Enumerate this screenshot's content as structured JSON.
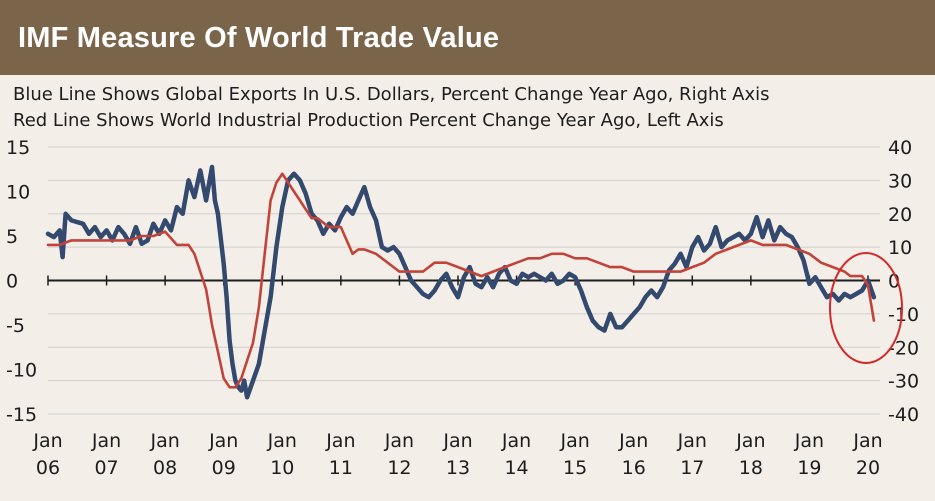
{
  "chart_data": {
    "type": "line",
    "title": "IMF Measure Of World Trade Value",
    "subtitle_lines": [
      "Blue Line Shows Global Exports In U.S. Dollars, Percent Change Year Ago, Right Axis",
      "Red Line Shows World Industrial Production Percent Change Year Ago, Left Axis"
    ],
    "x_tick_labels": [
      [
        "Jan",
        "06"
      ],
      [
        "Jan",
        "07"
      ],
      [
        "Jan",
        "08"
      ],
      [
        "Jan",
        "09"
      ],
      [
        "Jan",
        "10"
      ],
      [
        "Jan",
        "11"
      ],
      [
        "Jan",
        "12"
      ],
      [
        "Jan",
        "13"
      ],
      [
        "Jan",
        "14"
      ],
      [
        "Jan",
        "15"
      ],
      [
        "Jan",
        "16"
      ],
      [
        "Jan",
        "17"
      ],
      [
        "Jan",
        "18"
      ],
      [
        "Jan",
        "19"
      ],
      [
        "Jan",
        "20"
      ]
    ],
    "xlim": [
      2006.0,
      2020.2
    ],
    "left_axis": {
      "ylim": [
        -15,
        15
      ],
      "ticks": [
        15,
        10,
        5,
        0,
        -5,
        -10,
        -15
      ],
      "tick_labels": [
        "15",
        "10",
        "5",
        "0",
        "-5",
        "-10",
        "-15"
      ]
    },
    "right_axis": {
      "ylim": [
        -40,
        40
      ],
      "ticks": [
        40,
        30,
        20,
        10,
        0,
        -10,
        -20,
        -30,
        -40
      ],
      "tick_labels": [
        "40",
        "30",
        "20",
        "10",
        "0",
        "-10",
        "-20",
        "-30",
        "-40"
      ]
    },
    "grid": "horizontal",
    "series": [
      {
        "axis": "right",
        "color": "#34496e",
        "x": [
          2006.0,
          2006.1,
          2006.2,
          2006.25,
          2006.3,
          2006.4,
          2006.6,
          2006.7,
          2006.8,
          2006.9,
          2007.0,
          2007.1,
          2007.2,
          2007.3,
          2007.4,
          2007.5,
          2007.6,
          2007.7,
          2007.8,
          2007.9,
          2008.0,
          2008.1,
          2008.2,
          2008.3,
          2008.4,
          2008.5,
          2008.6,
          2008.7,
          2008.8,
          2008.85,
          2008.9,
          2009.0,
          2009.05,
          2009.1,
          2009.15,
          2009.2,
          2009.25,
          2009.3,
          2009.35,
          2009.4,
          2009.5,
          2009.6,
          2009.7,
          2009.8,
          2009.9,
          2010.0,
          2010.1,
          2010.2,
          2010.3,
          2010.4,
          2010.5,
          2010.6,
          2010.7,
          2010.8,
          2010.9,
          2011.0,
          2011.1,
          2011.2,
          2011.3,
          2011.4,
          2011.5,
          2011.6,
          2011.7,
          2011.8,
          2011.9,
          2012.0,
          2012.1,
          2012.2,
          2012.3,
          2012.4,
          2012.5,
          2012.6,
          2012.7,
          2012.8,
          2012.9,
          2013.0,
          2013.1,
          2013.2,
          2013.3,
          2013.4,
          2013.5,
          2013.6,
          2013.7,
          2013.8,
          2013.9,
          2014.0,
          2014.1,
          2014.2,
          2014.3,
          2014.4,
          2014.5,
          2014.6,
          2014.7,
          2014.8,
          2014.9,
          2015.0,
          2015.1,
          2015.2,
          2015.3,
          2015.4,
          2015.5,
          2015.6,
          2015.7,
          2015.8,
          2015.9,
          2016.0,
          2016.1,
          2016.2,
          2016.3,
          2016.4,
          2016.5,
          2016.6,
          2016.7,
          2016.8,
          2016.9,
          2017.0,
          2017.1,
          2017.2,
          2017.3,
          2017.4,
          2017.5,
          2017.6,
          2017.7,
          2017.8,
          2017.9,
          2018.0,
          2018.1,
          2018.2,
          2018.3,
          2018.4,
          2018.5,
          2018.6,
          2018.7,
          2018.8,
          2018.9,
          2019.0,
          2019.1,
          2019.2,
          2019.3,
          2019.4,
          2019.5,
          2019.6,
          2019.7,
          2019.8,
          2019.9,
          2020.0,
          2020.1
        ],
        "values": [
          14,
          13,
          15,
          7,
          20,
          18,
          17,
          14,
          16,
          13,
          15,
          12,
          16,
          14,
          11,
          16,
          11,
          12,
          17,
          14,
          18,
          15,
          22,
          20,
          30,
          25,
          33,
          24,
          34,
          24,
          20,
          5,
          -5,
          -18,
          -25,
          -30,
          -32,
          -33,
          -30,
          -35,
          -30,
          -25,
          -15,
          -5,
          10,
          22,
          30,
          32,
          30,
          26,
          20,
          18,
          14,
          17,
          15,
          19,
          22,
          20,
          24,
          28,
          22,
          18,
          10,
          9,
          10,
          8,
          4,
          0,
          -2,
          -4,
          -5,
          -3,
          0,
          2,
          -2,
          -5,
          1,
          4,
          -1,
          -2,
          1,
          -2,
          2,
          4,
          0,
          -1,
          2,
          1,
          2,
          1,
          0,
          2,
          -1,
          0,
          2,
          1,
          -3,
          -8,
          -12,
          -14,
          -15,
          -10,
          -14,
          -14,
          -12,
          -10,
          -8,
          -5,
          -3,
          -5,
          -2,
          3,
          5,
          8,
          4,
          10,
          13,
          9,
          11,
          16,
          10,
          12,
          13,
          14,
          12,
          14,
          19,
          13,
          18,
          12,
          16,
          14,
          13,
          10,
          6,
          -1,
          1,
          -2,
          -5,
          -4,
          -6,
          -4,
          -5,
          -4,
          -3,
          0,
          -5
        ]
      },
      {
        "axis": "left",
        "color": "#c1443b",
        "x": [
          2006.0,
          2006.2,
          2006.4,
          2006.6,
          2006.8,
          2007.0,
          2007.2,
          2007.4,
          2007.6,
          2007.8,
          2008.0,
          2008.2,
          2008.4,
          2008.5,
          2008.6,
          2008.7,
          2008.75,
          2008.8,
          2008.9,
          2009.0,
          2009.1,
          2009.2,
          2009.3,
          2009.4,
          2009.5,
          2009.6,
          2009.7,
          2009.8,
          2009.9,
          2010.0,
          2010.1,
          2010.2,
          2010.3,
          2010.4,
          2010.5,
          2010.6,
          2010.8,
          2011.0,
          2011.2,
          2011.3,
          2011.4,
          2011.6,
          2011.8,
          2012.0,
          2012.2,
          2012.4,
          2012.6,
          2012.8,
          2013.0,
          2013.2,
          2013.4,
          2013.6,
          2013.8,
          2014.0,
          2014.2,
          2014.4,
          2014.6,
          2014.8,
          2015.0,
          2015.2,
          2015.4,
          2015.6,
          2015.8,
          2016.0,
          2016.2,
          2016.4,
          2016.6,
          2016.8,
          2017.0,
          2017.2,
          2017.4,
          2017.6,
          2017.8,
          2018.0,
          2018.2,
          2018.4,
          2018.6,
          2018.8,
          2019.0,
          2019.2,
          2019.4,
          2019.6,
          2019.7,
          2019.8,
          2019.9,
          2020.0,
          2020.05,
          2020.1
        ],
        "values": [
          4,
          4,
          4.5,
          4.5,
          4.5,
          4.5,
          4.5,
          4.5,
          5,
          5,
          5.5,
          4,
          4,
          3,
          1,
          -1,
          -3,
          -5,
          -8,
          -11,
          -12,
          -12,
          -11,
          -9,
          -7,
          -3,
          3,
          9,
          11,
          12,
          11,
          10,
          9,
          8,
          7,
          7,
          6,
          6,
          3,
          3.5,
          3.5,
          3,
          2,
          1,
          1,
          1,
          2,
          2,
          1.5,
          1,
          0.5,
          1,
          1.5,
          2,
          2.5,
          2.5,
          3,
          3,
          2.5,
          2.5,
          2,
          1.5,
          1.5,
          1,
          1,
          1,
          1,
          1,
          1.5,
          2,
          3,
          3.5,
          4,
          4.5,
          4,
          4,
          4,
          3.5,
          3,
          2,
          1.5,
          1,
          0.5,
          0.5,
          0.5,
          -0.5,
          -2.5,
          -4.5
        ]
      }
    ],
    "annotation": {
      "shape": "circle",
      "color": "#d12a2a"
    }
  }
}
